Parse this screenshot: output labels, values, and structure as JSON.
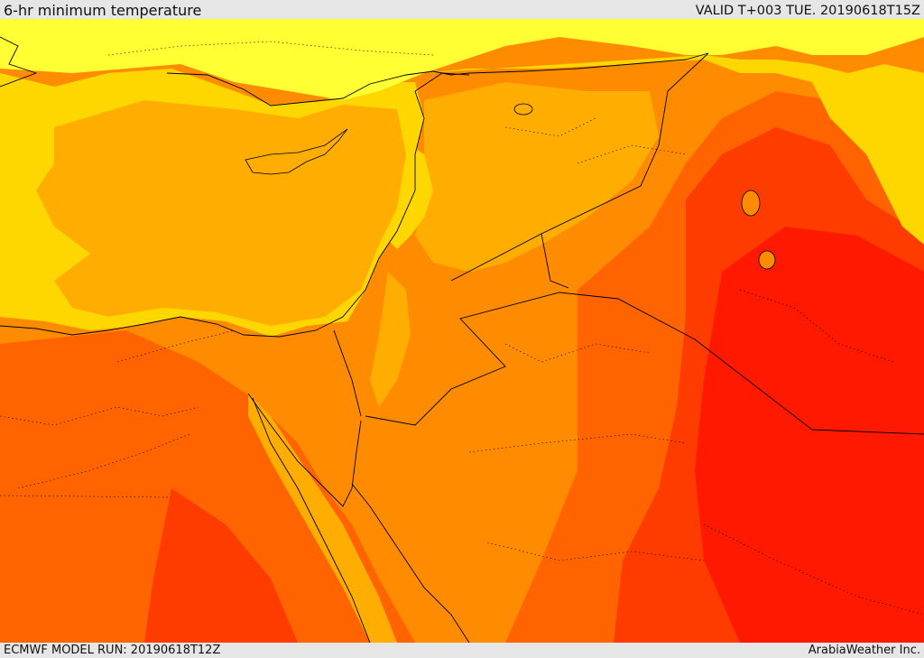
{
  "header": {
    "title": "6-hr minimum temperature",
    "valid": "VALID T+003 TUE. 20190618T15Z"
  },
  "footer": {
    "model_run": "ECMWF MODEL RUN: 20190618T12Z",
    "credit": "ArabiaWeather Inc."
  },
  "colors": {
    "coolest": "#ffff33",
    "cool": "#ffd700",
    "mild": "#ffad00",
    "warm": "#ff8c00",
    "hot": "#ff6400",
    "very_hot": "#ff3c00",
    "hottest": "#ff1900",
    "border": "#000000"
  }
}
